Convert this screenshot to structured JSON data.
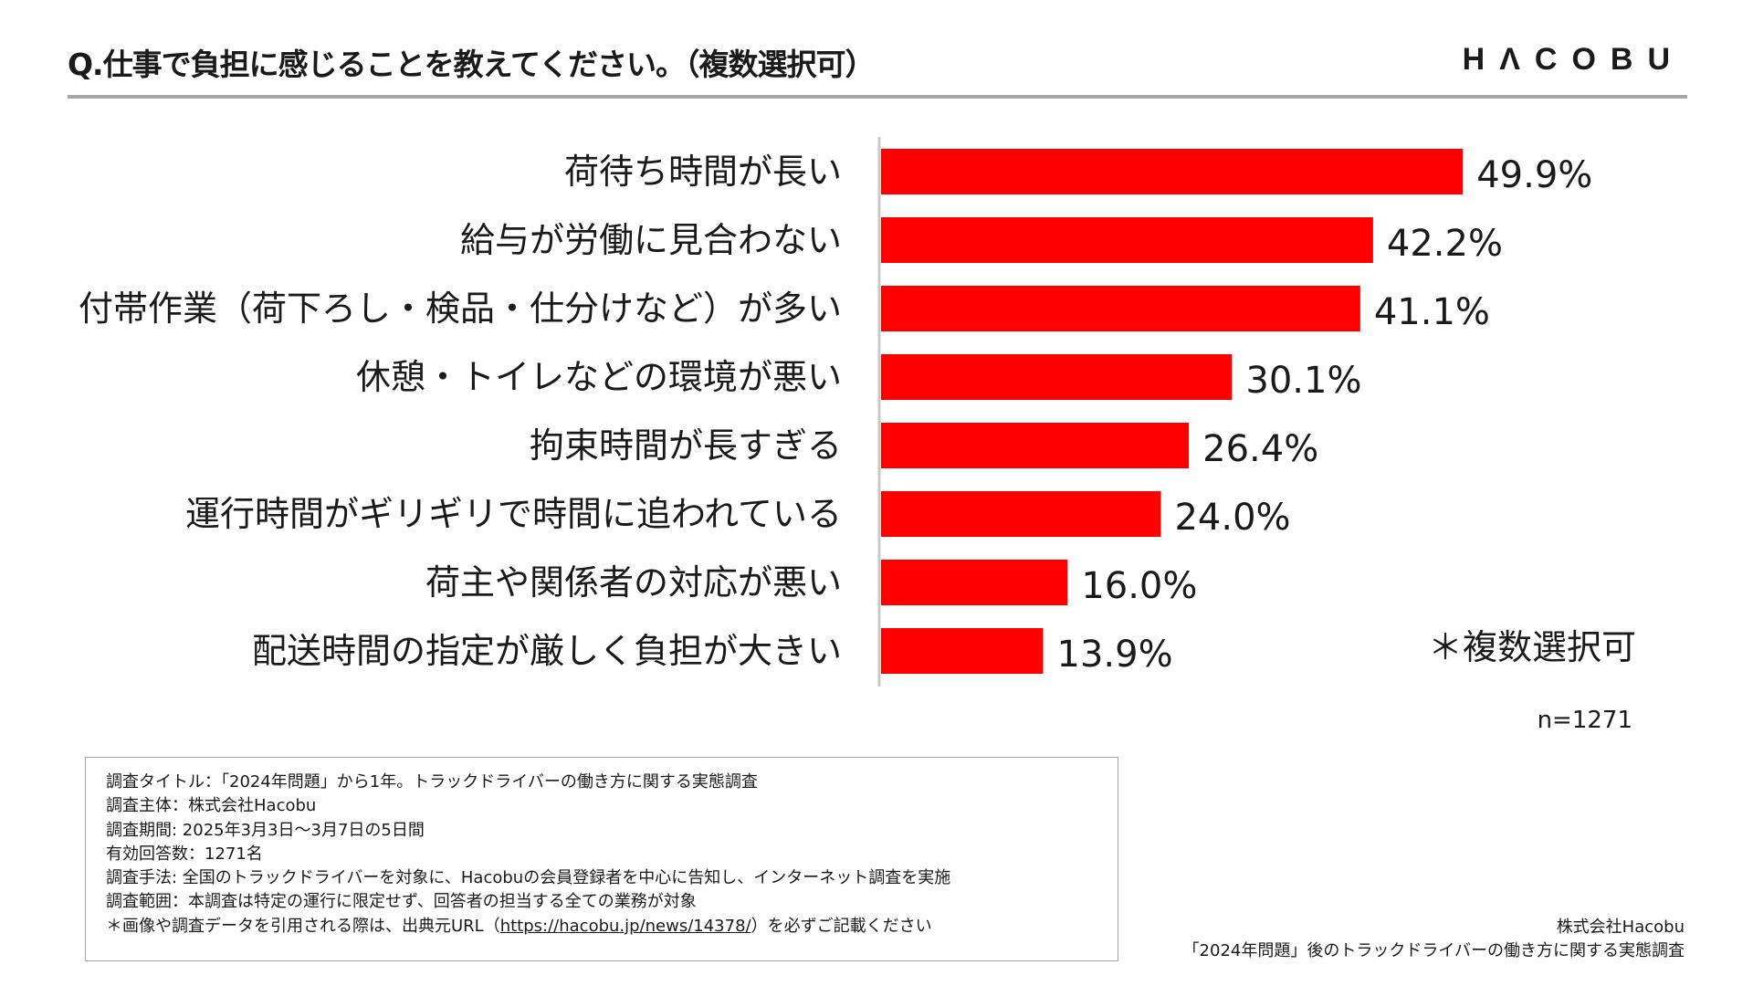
{
  "header": {
    "question": "Q.仕事で負担に感じることを教えてください。（複数選択可）",
    "logo": "HΛCOBU"
  },
  "chart_data": {
    "type": "bar",
    "orientation": "horizontal",
    "title": "Q.仕事で負担に感じることを教えてください。（複数選択可）",
    "categories": [
      "荷待ち時間が長い",
      "給与が労働に見合わない",
      "付帯作業（荷下ろし・検品・仕分けなど）が多い",
      "休憩・トイレなどの環境が悪い",
      "拘束時間が長すぎる",
      "運行時間がギリギリで時間に追われている",
      "荷主や関係者の対応が悪い",
      "配送時間の指定が厳しく負担が大きい"
    ],
    "values": [
      49.9,
      42.2,
      41.1,
      30.1,
      26.4,
      24.0,
      16.0,
      13.9
    ],
    "value_labels": [
      "49.9%",
      "42.2%",
      "41.1%",
      "30.1%",
      "26.4%",
      "24.0%",
      "16.0%",
      "13.9%"
    ],
    "unit": "%",
    "xlim": [
      0,
      100
    ],
    "bar_color": "#ff0000",
    "grid": false,
    "xlabel": "",
    "ylabel": ""
  },
  "notes": {
    "multi_select": "＊複数選択可",
    "sample_size": "n=1271"
  },
  "survey": {
    "title_line": "調査タイトル：「2024年問題」から1年。トラックドライバーの働き方に関する実態調査",
    "sponsor_line": "調査主体：株式会社Hacobu",
    "period_line": "調査期間: 2025年3月3日〜3月7日の5日間",
    "responses_line": "有効回答数：1271名",
    "method_line": "調査手法: 全国のトラックドライバーを対象に、Hacobuの会員登録者を中心に告知し、インターネット調査を実施",
    "scope_line": "調査範囲：本調査は特定の運行に限定せず、回答者の担当する全ての業務が対象",
    "citation_prefix": "＊画像や調査データを引用される際は、出典元URL（",
    "citation_url": "https://hacobu.jp/news/14378/",
    "citation_suffix": "）を必ずご記載ください"
  },
  "credit": {
    "company": "株式会社Hacobu",
    "report": "「2024年問題」後のトラックドライバーの働き方に関する実態調査"
  }
}
